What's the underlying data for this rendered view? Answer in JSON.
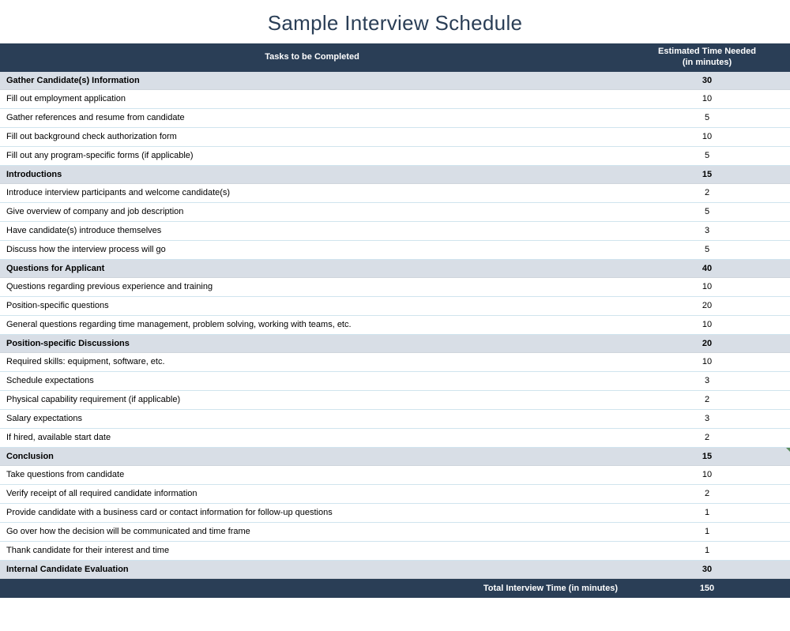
{
  "title": "Sample Interview Schedule",
  "title_color": "#2a3e56",
  "header_bg": "#2a3e56",
  "header_text_color": "#ffffff",
  "section_bg": "#d8dee6",
  "row_border_color": "#d0e4ee",
  "footer_bg": "#2a3e56",
  "col_task_header": "Tasks to be Completed",
  "col_time_header": "Estimated Time Needed\n(in minutes)",
  "footer_label": "Total Interview Time (in minutes)",
  "footer_total": "150",
  "sections": [
    {
      "name": "Gather Candidate(s) Information",
      "time": "30",
      "has_tick": false,
      "items": [
        {
          "task": "Fill out employment application",
          "time": "10"
        },
        {
          "task": "Gather references and resume from candidate",
          "time": "5"
        },
        {
          "task": "Fill out background check authorization form",
          "time": "10"
        },
        {
          "task": "Fill out any program-specific forms (if applicable)",
          "time": "5"
        }
      ]
    },
    {
      "name": "Introductions",
      "time": "15",
      "has_tick": false,
      "items": [
        {
          "task": "Introduce interview participants and welcome candidate(s)",
          "time": "2"
        },
        {
          "task": "Give overview of company and job description",
          "time": "5"
        },
        {
          "task": "Have candidate(s) introduce themselves",
          "time": "3"
        },
        {
          "task": "Discuss how the interview process will go",
          "time": "5"
        }
      ]
    },
    {
      "name": "Questions for Applicant",
      "time": "40",
      "has_tick": false,
      "items": [
        {
          "task": "Questions regarding previous experience and training",
          "time": "10"
        },
        {
          "task": "Position-specific questions",
          "time": "20"
        },
        {
          "task": "General questions regarding time management, problem solving, working with teams, etc.",
          "time": "10"
        }
      ]
    },
    {
      "name": "Position-specific Discussions",
      "time": "20",
      "has_tick": false,
      "items": [
        {
          "task": "Required skills: equipment, software, etc.",
          "time": "10"
        },
        {
          "task": "Schedule expectations",
          "time": "3"
        },
        {
          "task": "Physical capability requirement (if applicable)",
          "time": "2"
        },
        {
          "task": "Salary expectations",
          "time": "3"
        },
        {
          "task": "If hired, available start date",
          "time": "2"
        }
      ]
    },
    {
      "name": "Conclusion",
      "time": "15",
      "has_tick": true,
      "items": [
        {
          "task": "Take questions from candidate",
          "time": "10"
        },
        {
          "task": "Verify receipt of all required candidate information",
          "time": "2"
        },
        {
          "task": "Provide candidate with a business card or contact information for follow-up questions",
          "time": "1"
        },
        {
          "task": "Go over how the decision will be communicated and time frame",
          "time": "1"
        },
        {
          "task": "Thank candidate for their interest and time",
          "time": "1"
        }
      ]
    },
    {
      "name": "Internal Candidate Evaluation",
      "time": "30",
      "has_tick": false,
      "items": []
    }
  ]
}
